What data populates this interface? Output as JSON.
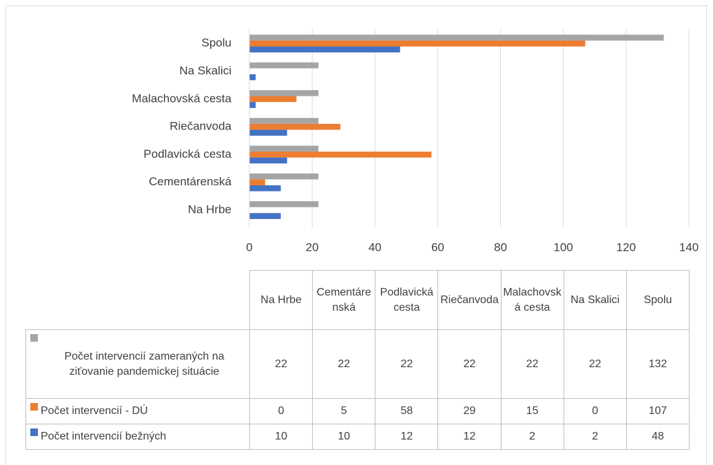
{
  "chart_data": {
    "type": "bar",
    "orientation": "horizontal",
    "categories": [
      "Na Hrbe",
      "Cementárenská",
      "Podlavická cesta",
      "Riečanvoda",
      "Malachovská cesta",
      "Na Skalici",
      "Spolu"
    ],
    "series": [
      {
        "name": "Počet intervencií zameraných na ziťovanie pandemickej situácie",
        "color": "#a5a5a5",
        "values": [
          22,
          22,
          22,
          22,
          22,
          22,
          132
        ]
      },
      {
        "name": "Počet intervencií - DÚ",
        "color": "#ed7d31",
        "values": [
          0,
          5,
          58,
          29,
          15,
          0,
          107
        ]
      },
      {
        "name": "Počet intervencií bežných",
        "color": "#4472c4",
        "values": [
          10,
          10,
          12,
          12,
          2,
          2,
          48
        ]
      }
    ],
    "xlim": [
      0,
      140
    ],
    "xticks": [
      0,
      20,
      40,
      60,
      80,
      100,
      120,
      140
    ],
    "grid": true,
    "data_table": true
  }
}
